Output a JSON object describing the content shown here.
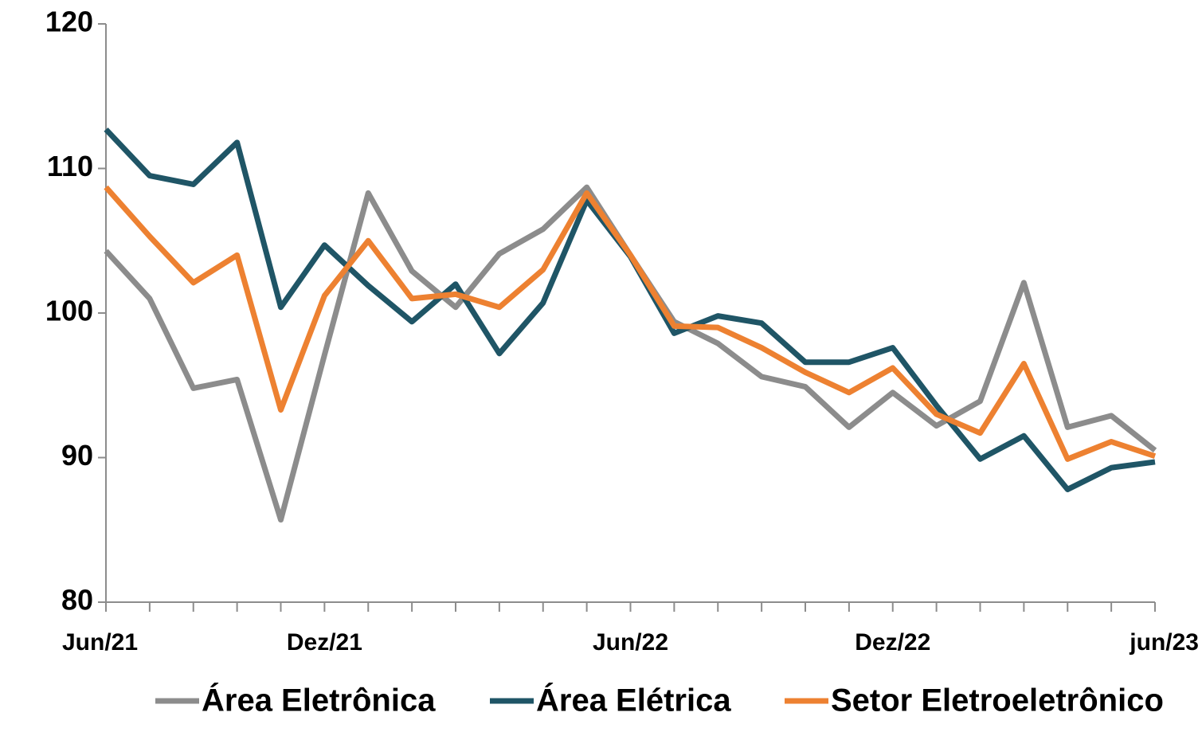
{
  "chart_data": {
    "type": "line",
    "categories": [
      "Jun/21",
      null,
      null,
      null,
      null,
      "Dez/21",
      null,
      null,
      null,
      null,
      null,
      null,
      "Jun/22",
      null,
      null,
      null,
      null,
      null,
      "Dez/22",
      null,
      null,
      null,
      null,
      null,
      "jun/23"
    ],
    "series": [
      {
        "name": "Área Eletrônica",
        "color": "#8c8c8c",
        "values": [
          104.3,
          101.0,
          94.8,
          95.4,
          85.7,
          97.1,
          108.3,
          102.9,
          100.4,
          104.1,
          105.8,
          108.7,
          104.0,
          99.4,
          97.9,
          95.6,
          94.9,
          92.1,
          94.5,
          92.2,
          93.9,
          102.1,
          92.1,
          92.9,
          90.5
        ]
      },
      {
        "name": "Área Elétrica",
        "color": "#1f5566",
        "values": [
          112.7,
          109.5,
          108.9,
          111.8,
          100.4,
          104.7,
          101.9,
          99.4,
          102.0,
          97.2,
          100.7,
          107.8,
          103.9,
          98.6,
          99.8,
          99.3,
          96.6,
          96.6,
          97.6,
          93.6,
          89.9,
          91.5,
          87.8,
          89.3,
          89.7
        ]
      },
      {
        "name": "Setor Eletroeletrônico",
        "color": "#ed8131",
        "values": [
          108.7,
          105.3,
          102.1,
          104.0,
          93.3,
          101.2,
          105.0,
          101.0,
          101.3,
          100.4,
          103.0,
          108.3,
          104.0,
          99.1,
          99.0,
          97.6,
          95.9,
          94.5,
          96.2,
          93.0,
          91.7,
          96.5,
          89.9,
          91.1,
          90.1
        ]
      }
    ],
    "ylim": [
      80,
      120
    ],
    "yticks": [
      80,
      90,
      100,
      110,
      120
    ],
    "grid": false
  }
}
